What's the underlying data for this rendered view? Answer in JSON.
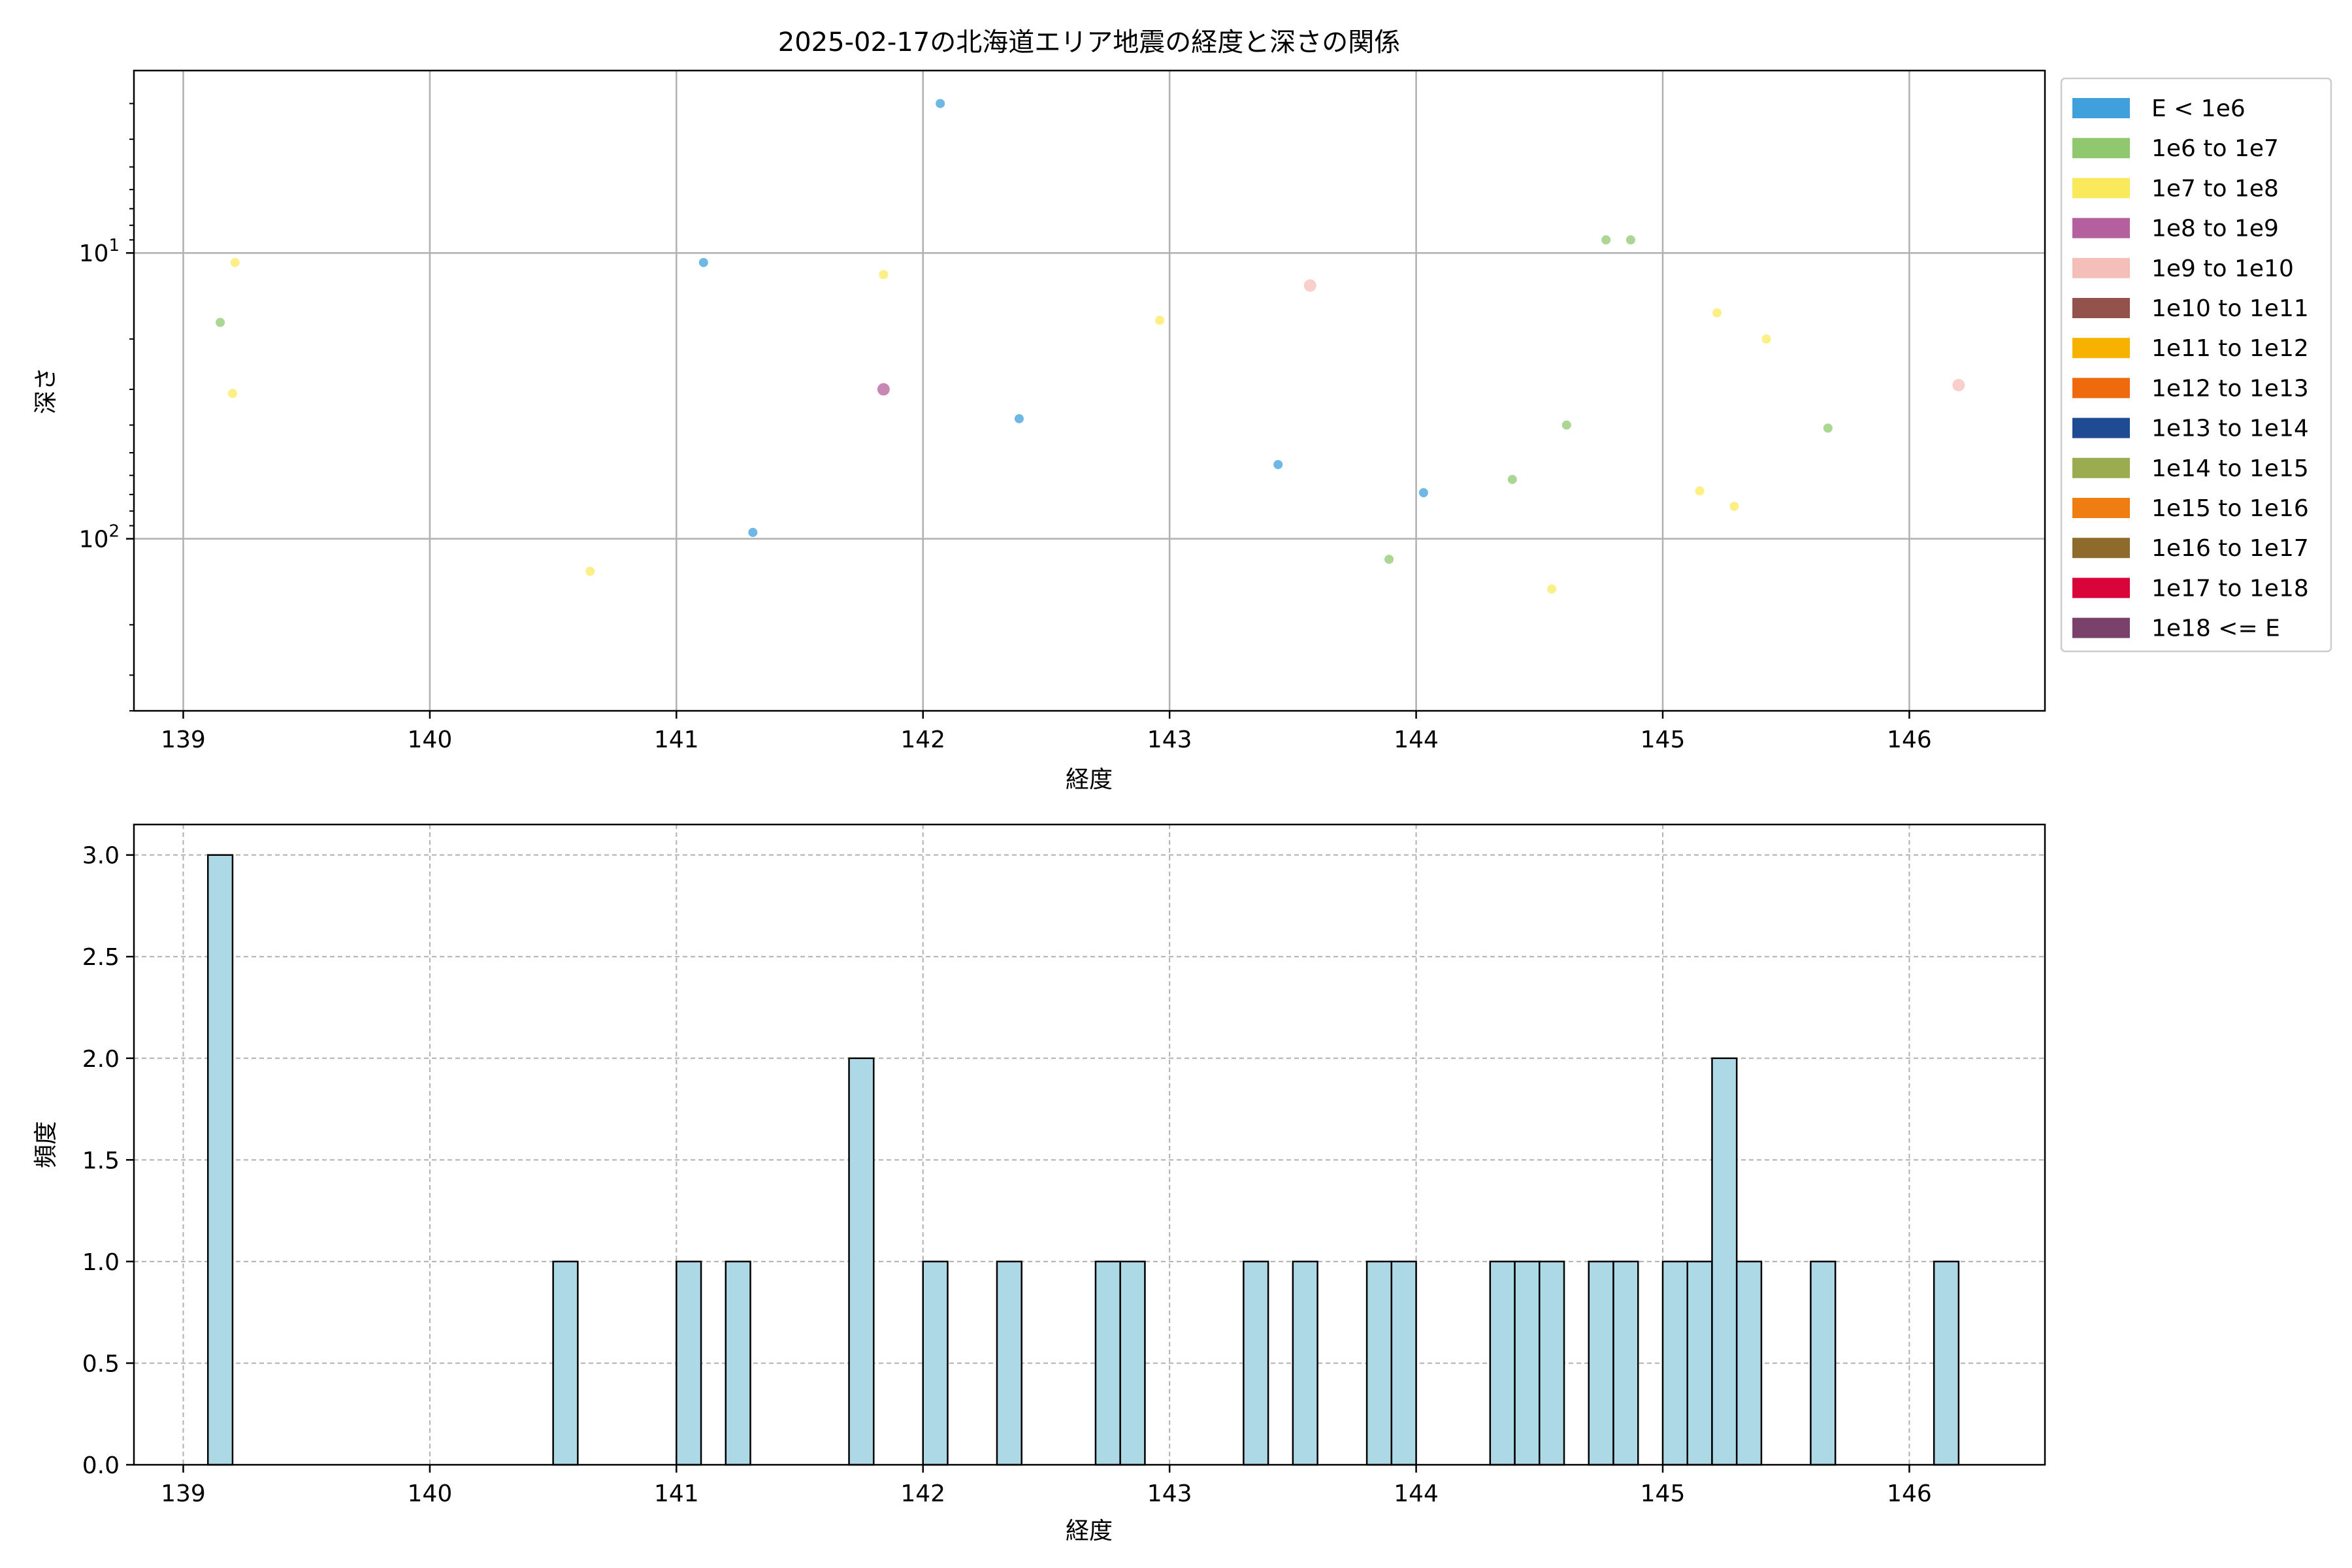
{
  "chart_data": [
    {
      "type": "scatter",
      "title": "2025-02-17の北海道エリア地震の経度と深さの関係",
      "xlabel": "経度",
      "ylabel": "深さ",
      "xlim": [
        138.8,
        146.55
      ],
      "ylim": [
        400,
        2.3
      ],
      "yscale": "log",
      "inverted_y": true,
      "xticks": [
        "139",
        "140",
        "141",
        "142",
        "143",
        "144",
        "145",
        "146"
      ],
      "yticks": [
        {
          "value": 10,
          "base": "10",
          "exp": "1"
        },
        {
          "value": 100,
          "base": "10",
          "exp": "2"
        }
      ],
      "grid": true,
      "legend_position": "outside-right",
      "legend": [
        {
          "label": "E < 1e6",
          "color": "#3fa0dc"
        },
        {
          "label": "1e6 to 1e7",
          "color": "#8fc86f"
        },
        {
          "label": "1e7 to 1e8",
          "color": "#fbe95c"
        },
        {
          "label": "1e8 to 1e9",
          "color": "#b5609e"
        },
        {
          "label": "1e9 to 1e10",
          "color": "#f5bfb9"
        },
        {
          "label": "1e10 to 1e11",
          "color": "#93524c"
        },
        {
          "label": "1e11 to 1e12",
          "color": "#f7b200"
        },
        {
          "label": "1e12 to 1e13",
          "color": "#ee6a0c"
        },
        {
          "label": "1e13 to 1e14",
          "color": "#1f4b93"
        },
        {
          "label": "1e14 to 1e15",
          "color": "#9aac4f"
        },
        {
          "label": "1e15 to 1e16",
          "color": "#ef7d11"
        },
        {
          "label": "1e16 to 1e17",
          "color": "#8f6a2d"
        },
        {
          "label": "1e17 to 1e18",
          "color": "#d9043a"
        },
        {
          "label": "1e18 <= E",
          "color": "#7a416b"
        }
      ],
      "points": [
        {
          "x": 139.15,
          "y": 17.5,
          "cls": 1
        },
        {
          "x": 139.21,
          "y": 10.8,
          "cls": 2
        },
        {
          "x": 139.2,
          "y": 31,
          "cls": 2
        },
        {
          "x": 140.65,
          "y": 130,
          "cls": 2
        },
        {
          "x": 141.11,
          "y": 10.8,
          "cls": 0
        },
        {
          "x": 141.31,
          "y": 95,
          "cls": 0
        },
        {
          "x": 141.84,
          "y": 11.9,
          "cls": 2
        },
        {
          "x": 141.84,
          "y": 30,
          "cls": 3
        },
        {
          "x": 142.07,
          "y": 3.0,
          "cls": 0
        },
        {
          "x": 142.39,
          "y": 38,
          "cls": 0
        },
        {
          "x": 142.96,
          "y": 17.2,
          "cls": 2
        },
        {
          "x": 143.44,
          "y": 55,
          "cls": 0
        },
        {
          "x": 143.57,
          "y": 13.0,
          "cls": 4
        },
        {
          "x": 143.89,
          "y": 118,
          "cls": 1
        },
        {
          "x": 144.03,
          "y": 69,
          "cls": 0
        },
        {
          "x": 144.39,
          "y": 62,
          "cls": 1
        },
        {
          "x": 144.55,
          "y": 150,
          "cls": 2
        },
        {
          "x": 144.61,
          "y": 40,
          "cls": 1
        },
        {
          "x": 144.77,
          "y": 9.0,
          "cls": 1
        },
        {
          "x": 144.87,
          "y": 9.0,
          "cls": 1
        },
        {
          "x": 145.15,
          "y": 68,
          "cls": 2
        },
        {
          "x": 145.22,
          "y": 16.2,
          "cls": 2
        },
        {
          "x": 145.29,
          "y": 77,
          "cls": 2
        },
        {
          "x": 145.42,
          "y": 20,
          "cls": 2
        },
        {
          "x": 145.67,
          "y": 41,
          "cls": 1
        },
        {
          "x": 146.2,
          "y": 29,
          "cls": 4
        }
      ]
    },
    {
      "type": "bar",
      "xlabel": "経度",
      "ylabel": "頻度",
      "xlim": [
        138.8,
        146.55
      ],
      "ylim": [
        0,
        3.15
      ],
      "xticks": [
        "139",
        "140",
        "141",
        "142",
        "143",
        "144",
        "145",
        "146"
      ],
      "yticks": [
        "0.0",
        "0.5",
        "1.0",
        "1.5",
        "2.0",
        "2.5",
        "3.0"
      ],
      "grid": true,
      "grid_style": "dashed",
      "bar_color": "#add8e6",
      "bin_width": 0.1,
      "bins": [
        {
          "x": 139.15,
          "count": 3
        },
        {
          "x": 140.55,
          "count": 1
        },
        {
          "x": 141.05,
          "count": 1
        },
        {
          "x": 141.25,
          "count": 1
        },
        {
          "x": 141.75,
          "count": 2
        },
        {
          "x": 142.05,
          "count": 1
        },
        {
          "x": 142.35,
          "count": 1
        },
        {
          "x": 142.75,
          "count": 1
        },
        {
          "x": 142.85,
          "count": 1
        },
        {
          "x": 143.35,
          "count": 1
        },
        {
          "x": 143.55,
          "count": 1
        },
        {
          "x": 143.85,
          "count": 1
        },
        {
          "x": 143.95,
          "count": 1
        },
        {
          "x": 144.35,
          "count": 1
        },
        {
          "x": 144.45,
          "count": 1
        },
        {
          "x": 144.55,
          "count": 1
        },
        {
          "x": 144.75,
          "count": 1
        },
        {
          "x": 144.85,
          "count": 1
        },
        {
          "x": 145.05,
          "count": 1
        },
        {
          "x": 145.15,
          "count": 1
        },
        {
          "x": 145.25,
          "count": 2
        },
        {
          "x": 145.35,
          "count": 1
        },
        {
          "x": 145.65,
          "count": 1
        },
        {
          "x": 146.15,
          "count": 1
        }
      ]
    }
  ]
}
